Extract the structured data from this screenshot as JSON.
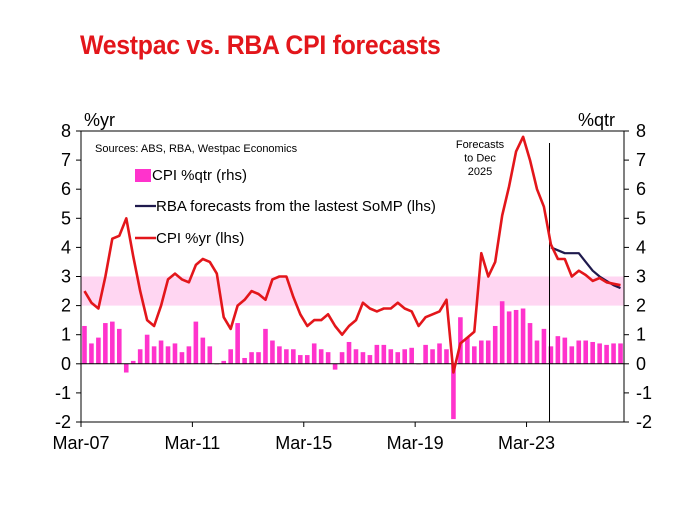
{
  "title": "Westpac vs. RBA CPI forecasts",
  "chart_data": {
    "type": "line",
    "title": "Westpac vs. RBA CPI forecasts",
    "source": "Sources: ABS, RBA, Westpac Economics",
    "left_unit": "%yr",
    "right_unit": "%qtr",
    "ylim": [
      -2,
      8
    ],
    "yticks": [
      -2,
      -1,
      0,
      1,
      2,
      3,
      4,
      5,
      6,
      7,
      8
    ],
    "x_tick_labels": [
      "Mar-07",
      "Mar-11",
      "Mar-15",
      "Mar-19",
      "Mar-23"
    ],
    "x_tick_index": [
      0,
      16,
      32,
      48,
      64
    ],
    "forecast_note": [
      "Forecasts",
      "to Dec",
      "2025"
    ],
    "forecast_start_index": 67,
    "target_band": [
      2,
      3
    ],
    "colors": {
      "cpi_qtr": "#ff33cc",
      "target_band": "#ffd6f2",
      "rba": "#1f1a4d",
      "cpi_yr": "#e3161b"
    },
    "legend": [
      {
        "label": "CPI %qtr (rhs)",
        "key": "cpi_qtr"
      },
      {
        "label": "RBA forecasts from the lastest SoMP (lhs)",
        "key": "rba"
      },
      {
        "label": "CPI %yr (lhs)",
        "key": "cpi_yr"
      }
    ],
    "series": [
      {
        "name": "CPI %qtr (rhs)",
        "key": "cpi_qtr",
        "start_index": 0,
        "values": [
          1.3,
          0.7,
          0.9,
          1.4,
          1.45,
          1.2,
          -0.3,
          0.1,
          0.5,
          1.0,
          0.6,
          0.8,
          0.6,
          0.7,
          0.4,
          0.6,
          1.45,
          0.9,
          0.6,
          0.0,
          0.1,
          0.5,
          1.4,
          0.2,
          0.4,
          0.4,
          1.2,
          0.8,
          0.6,
          0.5,
          0.5,
          0.3,
          0.3,
          0.7,
          0.5,
          0.4,
          -0.2,
          0.4,
          0.75,
          0.5,
          0.4,
          0.3,
          0.65,
          0.65,
          0.5,
          0.4,
          0.5,
          0.55,
          0.0,
          0.65,
          0.5,
          0.7,
          0.5,
          -1.9,
          1.6,
          0.9,
          0.6,
          0.8,
          0.8,
          1.3,
          2.15,
          1.8,
          1.85,
          1.9,
          1.4,
          0.8,
          1.2,
          0.6,
          0.95,
          0.9,
          0.6,
          0.8,
          0.8,
          0.75,
          0.7,
          0.65,
          0.7,
          0.7
        ]
      },
      {
        "name": "CPI %yr (lhs)",
        "key": "cpi_yr",
        "start_index": 0,
        "values": [
          2.5,
          2.1,
          1.9,
          3.0,
          4.3,
          4.4,
          5.0,
          3.7,
          2.5,
          1.5,
          1.3,
          2.0,
          2.9,
          3.1,
          2.9,
          2.8,
          3.4,
          3.6,
          3.5,
          3.1,
          1.6,
          1.2,
          2.0,
          2.2,
          2.5,
          2.4,
          2.2,
          2.9,
          3.0,
          3.0,
          2.3,
          1.7,
          1.3,
          1.5,
          1.5,
          1.7,
          1.3,
          1.0,
          1.3,
          1.5,
          2.1,
          1.9,
          1.8,
          1.9,
          1.9,
          2.1,
          1.9,
          1.8,
          1.3,
          1.6,
          1.7,
          1.8,
          2.2,
          -0.3,
          0.7,
          0.9,
          1.1,
          3.8,
          3.0,
          3.5,
          5.1,
          6.1,
          7.3,
          7.8,
          7.0,
          6.0,
          5.4,
          4.1,
          3.6,
          3.6,
          3.0,
          3.2,
          3.05,
          2.85,
          2.95,
          2.8,
          2.75,
          2.7
        ]
      },
      {
        "name": "RBA forecasts from the lastest SoMP (lhs)",
        "key": "rba",
        "start_index": 67,
        "values": [
          4.0,
          3.9,
          3.8,
          3.8,
          3.8,
          3.5,
          3.2,
          3.0,
          2.85,
          2.7,
          2.6
        ]
      }
    ]
  }
}
